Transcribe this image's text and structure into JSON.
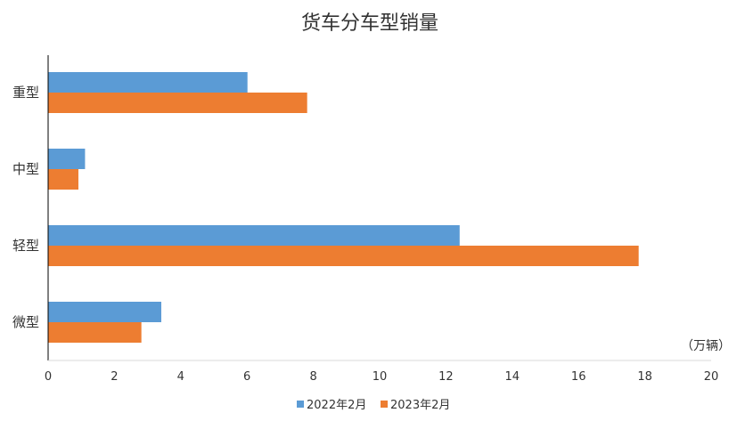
{
  "chart_data": {
    "type": "bar",
    "orientation": "horizontal",
    "title": "货车分车型销量",
    "unit_label": "（万辆）",
    "categories": [
      "重型",
      "中型",
      "轻型",
      "微型"
    ],
    "series": [
      {
        "name": "2022年2月",
        "color": "#5B9BD5",
        "values": [
          6.0,
          1.1,
          12.4,
          3.4
        ]
      },
      {
        "name": "2023年2月",
        "color": "#ED7D31",
        "values": [
          7.8,
          0.9,
          17.8,
          2.8
        ]
      }
    ],
    "xlim": [
      0,
      20
    ],
    "xticks": [
      "0",
      "2",
      "4",
      "6",
      "8",
      "10",
      "12",
      "14",
      "16",
      "18",
      "20"
    ],
    "grid": false,
    "legend_position": "bottom"
  }
}
